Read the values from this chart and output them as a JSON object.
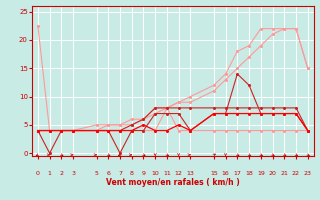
{
  "bg_color": "#c8ebe6",
  "grid_color": "#ffffff",
  "xlabel": "Vent moyen/en rafales ( km/h )",
  "xlabel_color": "#cc0000",
  "tick_color": "#cc0000",
  "xlim": [
    -0.5,
    23.5
  ],
  "ylim": [
    -0.5,
    26
  ],
  "yticks": [
    0,
    5,
    10,
    15,
    20,
    25
  ],
  "xticks": [
    0,
    1,
    2,
    3,
    5,
    6,
    7,
    8,
    9,
    10,
    11,
    12,
    13,
    15,
    16,
    17,
    18,
    19,
    20,
    21,
    22,
    23
  ],
  "lines": [
    {
      "x": [
        0,
        1,
        2,
        3,
        5,
        6,
        7,
        8,
        9,
        10,
        11,
        12,
        13,
        15,
        16,
        17,
        18,
        19,
        20,
        21,
        22,
        23
      ],
      "y": [
        22.5,
        4,
        4,
        4,
        4,
        4,
        4,
        4,
        4,
        4,
        8,
        4,
        4,
        4,
        4,
        4,
        4,
        4,
        4,
        4,
        4,
        4
      ],
      "color": "#ff9999",
      "lw": 0.8,
      "zorder": 2
    },
    {
      "x": [
        0,
        1,
        2,
        3,
        5,
        6,
        7,
        8,
        9,
        10,
        11,
        12,
        13,
        15,
        16,
        17,
        18,
        19,
        20,
        21,
        22,
        23
      ],
      "y": [
        4,
        4,
        4,
        4,
        5,
        5,
        5,
        6,
        6,
        8,
        8,
        9,
        10,
        12,
        14,
        18,
        19,
        22,
        22,
        22,
        22,
        15
      ],
      "color": "#ff9999",
      "lw": 0.8,
      "zorder": 2
    },
    {
      "x": [
        0,
        1,
        2,
        3,
        5,
        6,
        7,
        8,
        9,
        10,
        11,
        12,
        13,
        15,
        16,
        17,
        18,
        19,
        20,
        21,
        22,
        23
      ],
      "y": [
        4,
        4,
        4,
        4,
        4,
        5,
        5,
        5,
        6,
        7,
        8,
        9,
        9,
        11,
        13,
        15,
        17,
        19,
        21,
        22,
        22,
        15
      ],
      "color": "#ff9999",
      "lw": 0.8,
      "zorder": 2
    },
    {
      "x": [
        0,
        1,
        2,
        3,
        5,
        6,
        7,
        8,
        9,
        10,
        11,
        12,
        13,
        15,
        16,
        17,
        18,
        19,
        20,
        21,
        22,
        23
      ],
      "y": [
        4,
        4,
        4,
        4,
        4,
        4,
        4,
        5,
        6,
        8,
        8,
        8,
        8,
        8,
        8,
        8,
        8,
        8,
        8,
        8,
        8,
        4
      ],
      "color": "#cc2222",
      "lw": 0.8,
      "zorder": 3
    },
    {
      "x": [
        0,
        1,
        2,
        3,
        5,
        6,
        7,
        8,
        9,
        10,
        11,
        12,
        13,
        15,
        16,
        17,
        18,
        19,
        20,
        21,
        22,
        23
      ],
      "y": [
        4,
        0,
        4,
        4,
        4,
        4,
        0,
        4,
        4,
        7,
        7,
        7,
        4,
        7,
        7,
        14,
        12,
        7,
        7,
        7,
        7,
        4
      ],
      "color": "#cc2222",
      "lw": 0.8,
      "zorder": 3
    },
    {
      "x": [
        0,
        1,
        2,
        3,
        5,
        6,
        7,
        8,
        9,
        10,
        11,
        12,
        13,
        15,
        16,
        17,
        18,
        19,
        20,
        21,
        22,
        23
      ],
      "y": [
        4,
        4,
        4,
        4,
        4,
        4,
        4,
        4,
        5,
        4,
        4,
        5,
        4,
        7,
        7,
        7,
        7,
        7,
        7,
        7,
        7,
        4
      ],
      "color": "#ff0000",
      "lw": 0.9,
      "zorder": 4
    }
  ],
  "arrow_data": [
    [
      0,
      225
    ],
    [
      1,
      90
    ],
    [
      2,
      135
    ],
    [
      3,
      90
    ],
    [
      5,
      90
    ],
    [
      6,
      135
    ],
    [
      7,
      225
    ],
    [
      8,
      90
    ],
    [
      9,
      135
    ],
    [
      10,
      180
    ],
    [
      11,
      135
    ],
    [
      12,
      180
    ],
    [
      13,
      90
    ],
    [
      15,
      45
    ],
    [
      16,
      180
    ],
    [
      17,
      135
    ],
    [
      18,
      135
    ],
    [
      19,
      135
    ],
    [
      20,
      135
    ],
    [
      21,
      135
    ],
    [
      22,
      135
    ],
    [
      23,
      135
    ]
  ]
}
